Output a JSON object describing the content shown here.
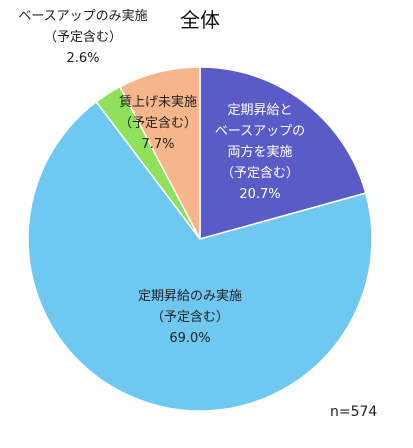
{
  "chart_data": {
    "type": "pie",
    "title": "全体",
    "note": "n=574",
    "slices": [
      {
        "category": "定期昇給とベースアップの両方を実施",
        "label_lines": [
          "定期昇給と",
          "ベースアップの",
          "両方を実施",
          "（予定含む）"
        ],
        "value": 20.7,
        "value_label": "20.7%",
        "color": "#5b5bc8"
      },
      {
        "category": "定期昇給のみ実施",
        "label_lines": [
          "定期昇給のみ実施",
          "（予定含む）"
        ],
        "value": 69.0,
        "value_label": "69.0%",
        "color": "#6ec8f0"
      },
      {
        "category": "ベースアップのみ実施",
        "label_lines": [
          "ベースアップのみ実施",
          "（予定含む）"
        ],
        "value": 2.6,
        "value_label": "2.6%",
        "color": "#8fe05a"
      },
      {
        "category": "賃上げ未実施",
        "label_lines": [
          "賃上げ未実施",
          "（予定含む）"
        ],
        "value": 7.7,
        "value_label": "7.7%",
        "color": "#f7b58a"
      }
    ]
  }
}
